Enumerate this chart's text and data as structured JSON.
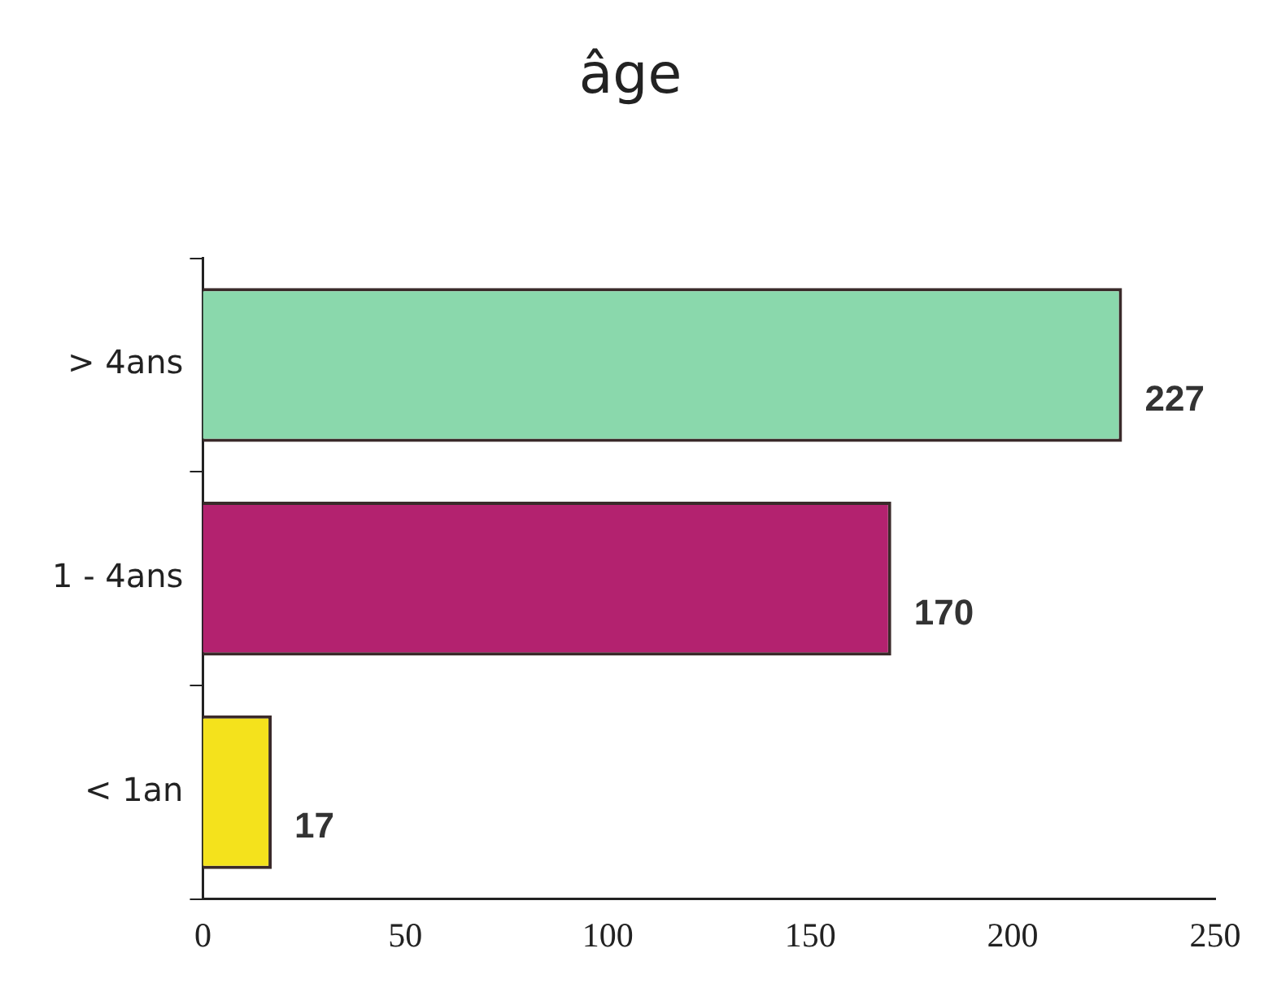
{
  "chart_data": {
    "type": "bar",
    "orientation": "horizontal",
    "title": "âge",
    "categories": [
      "> 4ans",
      "1 - 4ans",
      "< 1an"
    ],
    "values": [
      227,
      170,
      17
    ],
    "colors": [
      "#8ad8ac",
      "#b3226f",
      "#f4e21c"
    ],
    "xlim": [
      0,
      250
    ],
    "xticks": [
      0,
      50,
      100,
      150,
      200,
      250
    ],
    "data_labels": true,
    "grid": false,
    "legend": false
  }
}
